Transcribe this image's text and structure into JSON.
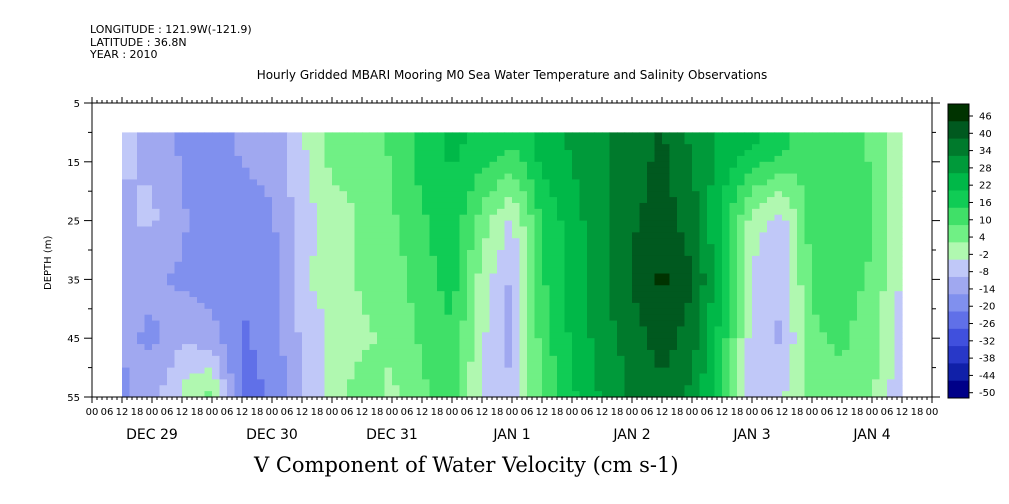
{
  "header": {
    "longitude": "LONGITUDE : 121.9W(-121.9)",
    "latitude": "LATITUDE : 36.8N",
    "year": "YEAR : 2010"
  },
  "chart_data": {
    "type": "heatmap",
    "title": "Hourly Gridded MBARI Mooring M0 Sea Water Temperature and Salinity Observations",
    "xlabel": "V Component of Water Velocity (cm s-1)",
    "ylabel": "DEPTH (m)",
    "y_ticks": [
      "5",
      "15",
      "25",
      "35",
      "45",
      "55"
    ],
    "y_range": [
      5,
      55
    ],
    "y_inverted": true,
    "x_hour_labels": [
      "00",
      "06",
      "12",
      "18",
      "00",
      "06",
      "12",
      "18",
      "00",
      "06",
      "12",
      "18",
      "00",
      "06",
      "12",
      "18",
      "00",
      "06",
      "12",
      "18",
      "00",
      "06",
      "12",
      "18",
      "00",
      "06",
      "12",
      "18",
      "00",
      "06",
      "12",
      "18",
      "00",
      "06",
      "12",
      "18",
      "00",
      "06",
      "12",
      "18",
      "00",
      "06",
      "12",
      "18",
      "00",
      "06",
      "12",
      "18",
      "00",
      "06",
      "12",
      "18",
      "00",
      "06",
      "12",
      "18",
      "00"
    ],
    "x_day_labels": [
      "DEC 29",
      "DEC 30",
      "DEC 31",
      "JAN  1",
      "JAN  2",
      "JAN  3",
      "JAN  4"
    ],
    "colorbar": {
      "labels": [
        "46",
        "40",
        "34",
        "28",
        "22",
        "16",
        "10",
        "4",
        "-2",
        "-8",
        "-14",
        "-20",
        "-26",
        "-32",
        "-38",
        "-44",
        "-50"
      ],
      "colors": [
        "#003300",
        "#00591f",
        "#007a2c",
        "#009a3a",
        "#00b848",
        "#10cc55",
        "#40e068",
        "#70f085",
        "#b0f8b0",
        "#c0c8f8",
        "#a0a8f0",
        "#8090ee",
        "#6070e8",
        "#4050dd",
        "#2838c8",
        "#1020a8",
        "#000088"
      ]
    },
    "series": [
      {
        "time_hours": [
          6,
          12,
          18,
          24,
          30,
          36,
          42,
          48,
          54,
          60,
          66,
          72,
          78,
          84,
          90,
          96,
          102,
          108,
          114,
          120,
          126,
          132,
          138,
          144,
          150,
          156,
          162
        ],
        "depth_profiles_cm_s": {
          "12": [
            -10,
            -12,
            -18,
            -20,
            -16,
            -14,
            -6,
            4,
            2,
            8,
            16,
            20,
            18,
            14,
            22,
            26,
            30,
            34,
            38,
            30,
            24,
            20,
            16,
            8,
            10,
            6,
            -6
          ],
          "25": [
            -12,
            -10,
            -16,
            -22,
            -20,
            -18,
            -8,
            -2,
            2,
            6,
            12,
            18,
            4,
            -6,
            14,
            22,
            30,
            36,
            40,
            34,
            18,
            -2,
            -8,
            10,
            12,
            8,
            -4
          ],
          "35": [
            -14,
            -16,
            -18,
            -20,
            -22,
            -20,
            -6,
            -2,
            2,
            4,
            10,
            16,
            -2,
            -12,
            12,
            22,
            30,
            38,
            44,
            38,
            20,
            -6,
            -10,
            8,
            10,
            6,
            -6
          ],
          "45": [
            -16,
            -18,
            -12,
            -14,
            -24,
            -20,
            -10,
            -4,
            0,
            2,
            8,
            12,
            -4,
            -14,
            10,
            20,
            28,
            34,
            40,
            34,
            16,
            -8,
            -12,
            6,
            8,
            4,
            -8
          ],
          "54": [
            -18,
            -14,
            -4,
            2,
            -26,
            -22,
            -12,
            -2,
            4,
            0,
            6,
            10,
            -6,
            -10,
            8,
            18,
            26,
            32,
            36,
            30,
            14,
            -10,
            -6,
            4,
            6,
            2,
            -10
          ]
        }
      }
    ]
  }
}
